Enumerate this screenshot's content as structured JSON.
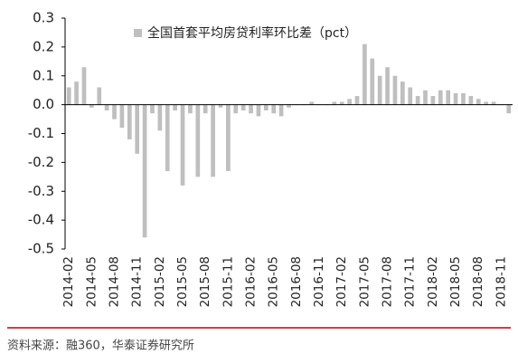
{
  "chart_data": {
    "type": "bar",
    "categories": [
      "2014-02",
      null,
      null,
      "2014-05",
      null,
      null,
      "2014-08",
      null,
      null,
      "2014-11",
      null,
      null,
      "2015-02",
      null,
      null,
      "2015-05",
      null,
      null,
      "2015-08",
      null,
      null,
      "2015-11",
      null,
      null,
      "2016-02",
      null,
      null,
      "2016-05",
      null,
      null,
      "2016-08",
      null,
      null,
      "2016-11",
      null,
      null,
      "2017-02",
      null,
      null,
      "2017-05",
      null,
      null,
      "2017-08",
      null,
      null,
      "2017-11",
      null,
      null,
      "2018-02",
      null,
      null,
      "2018-05",
      null,
      null,
      "2018-08",
      null,
      null,
      "2018-11",
      null
    ],
    "series": [
      {
        "name": "全国首套平均房贷利率环比差（pct）",
        "color": "#bfbfbf",
        "values": [
          0.06,
          0.08,
          0.13,
          -0.01,
          0.06,
          -0.02,
          -0.05,
          -0.08,
          -0.12,
          -0.17,
          -0.46,
          -0.03,
          -0.09,
          -0.23,
          -0.02,
          -0.28,
          -0.03,
          -0.25,
          -0.03,
          -0.25,
          -0.01,
          -0.23,
          -0.03,
          -0.02,
          -0.03,
          -0.04,
          -0.02,
          -0.03,
          -0.04,
          -0.01,
          0,
          0,
          0.01,
          0,
          0,
          0.01,
          0.01,
          0.02,
          0.03,
          0.21,
          0.16,
          0.1,
          0.13,
          0.1,
          0.08,
          0.06,
          0.03,
          0.05,
          0.03,
          0.05,
          0.05,
          0.04,
          0.04,
          0.03,
          0.02,
          0.01,
          0.01,
          0,
          -0.03
        ]
      }
    ],
    "ylim": [
      -0.5,
      0.3
    ],
    "yticks": [
      0.3,
      0.2,
      0.1,
      {
        "value": 0,
        "label": "0.0"
      },
      -0.1,
      -0.2,
      -0.3,
      -0.4,
      -0.5
    ],
    "legend": "top",
    "source": "资料来源：融360，华泰证券研究所"
  }
}
